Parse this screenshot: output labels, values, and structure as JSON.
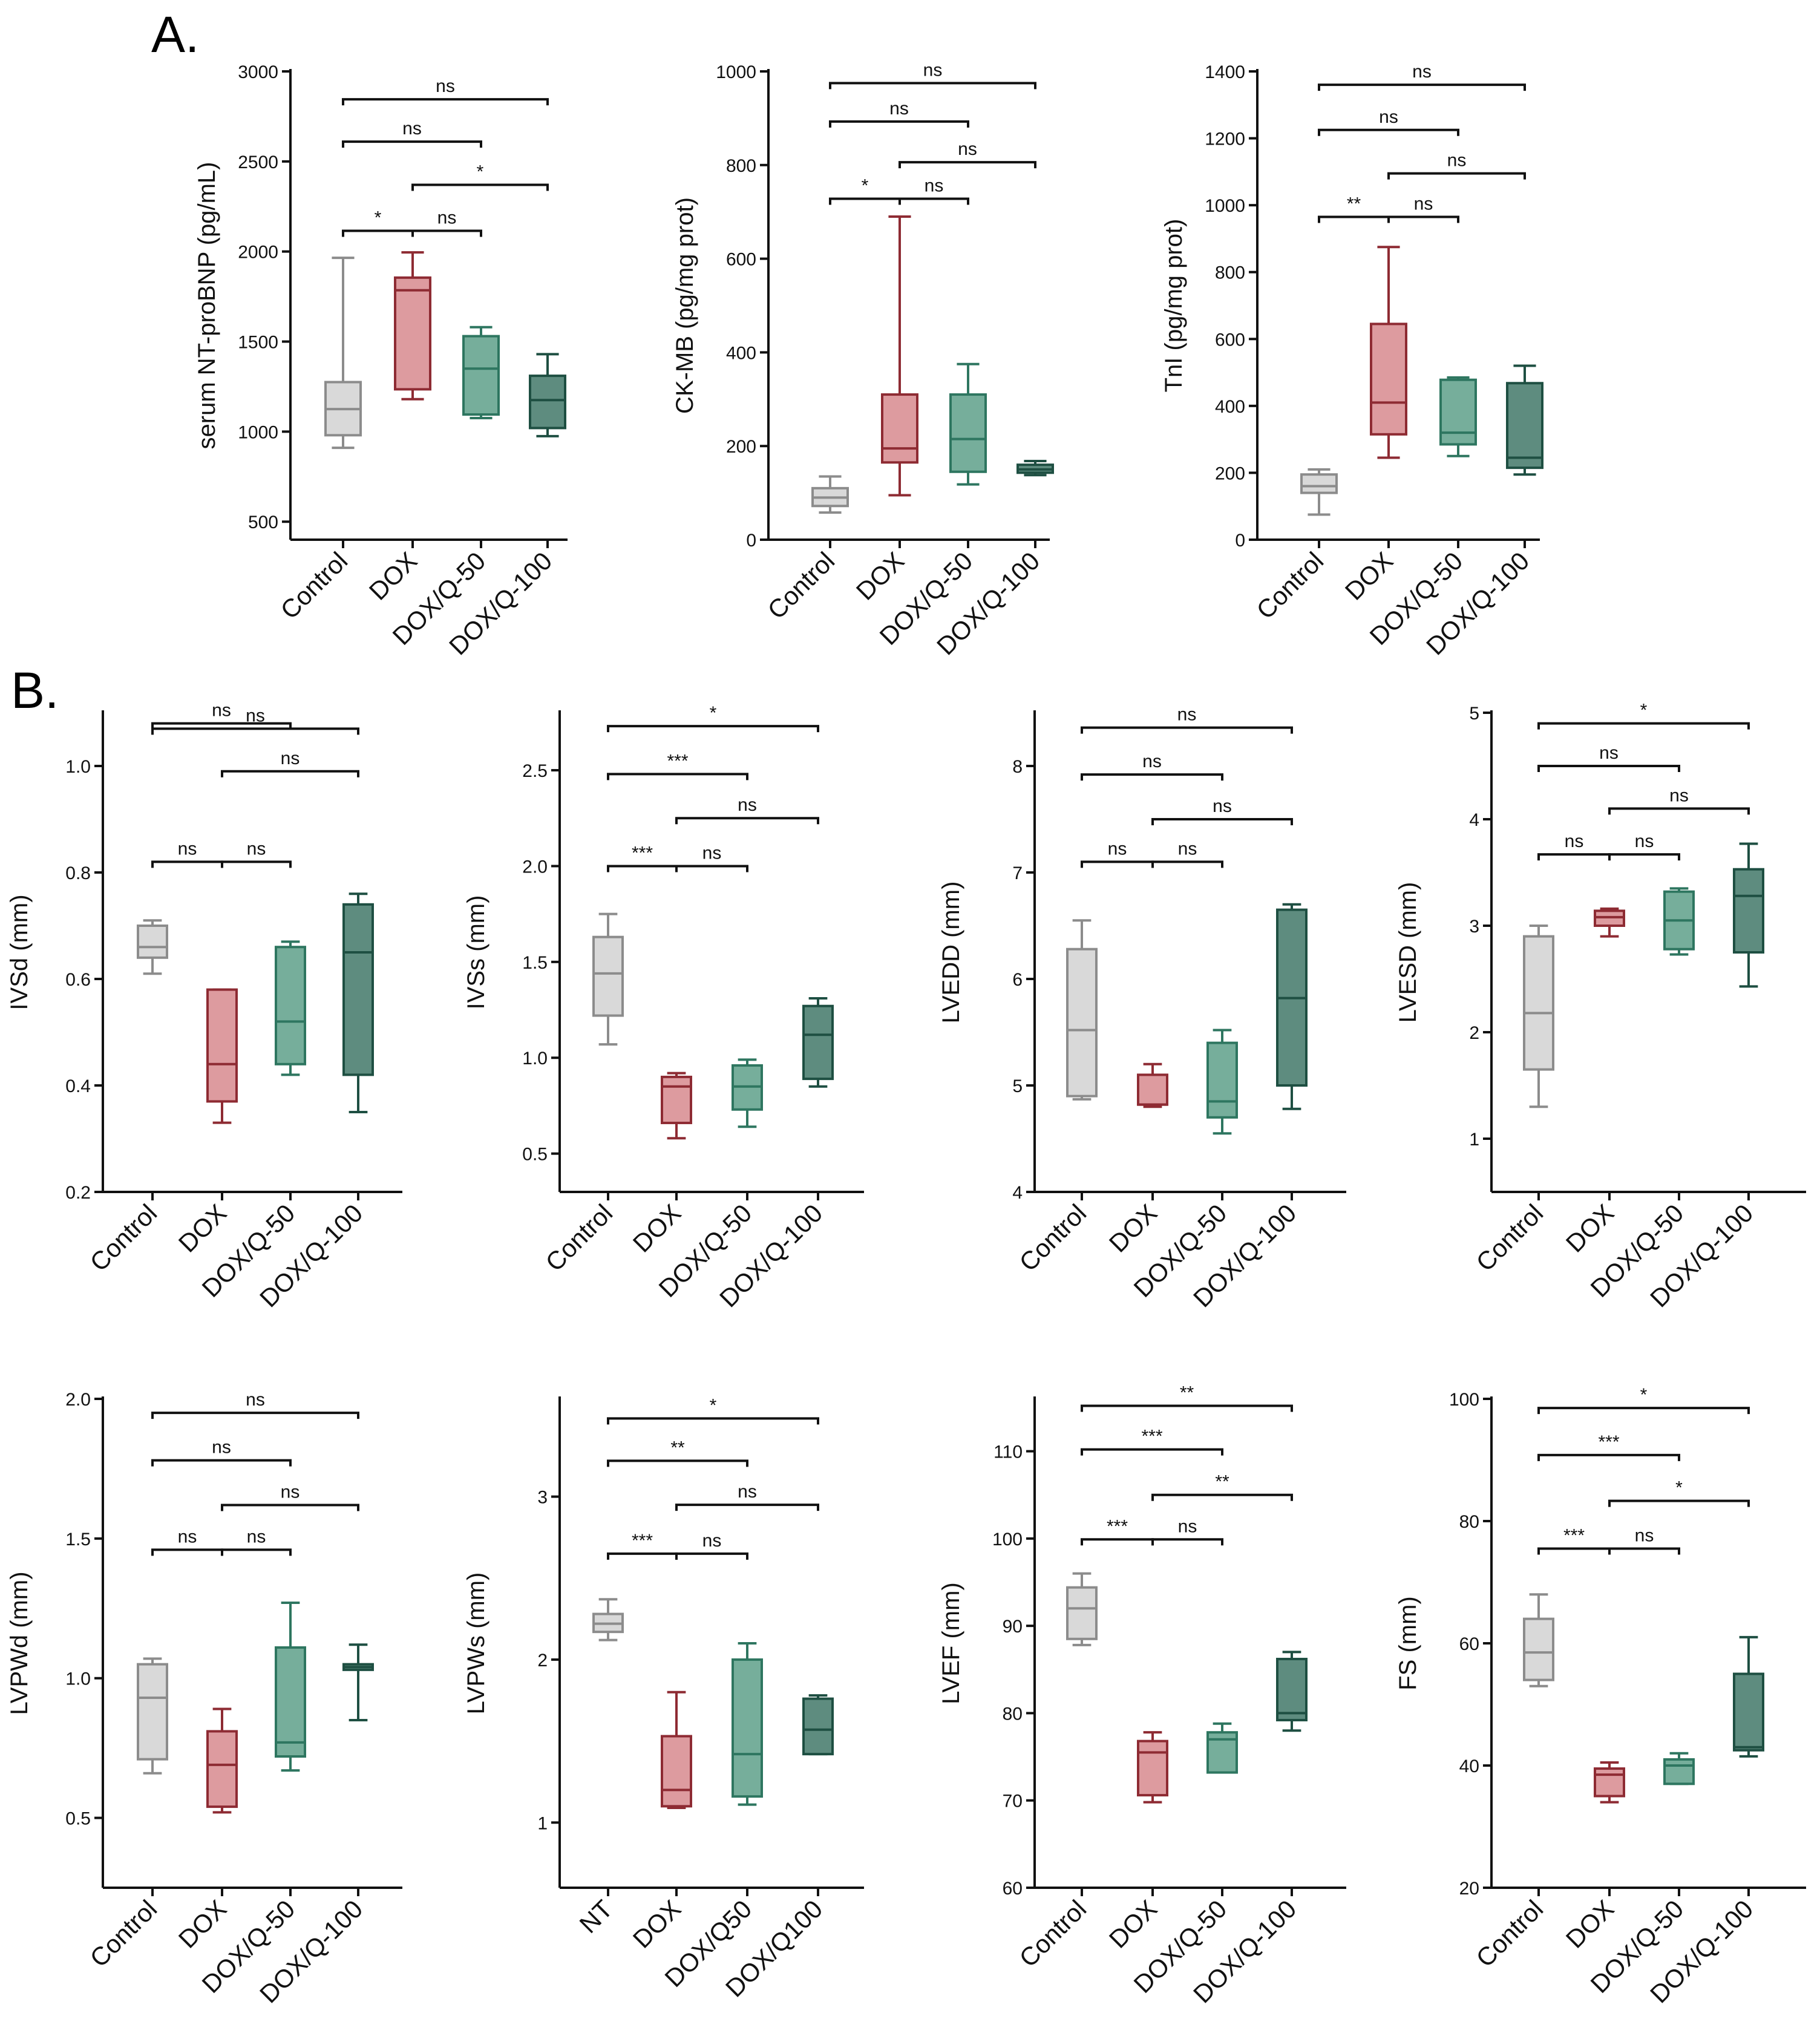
{
  "panel_labels": [
    "A.",
    "B."
  ],
  "group_colors": {
    "Control": {
      "fill": "#d9d9d9",
      "stroke": "#8c8c8c"
    },
    "DOX": {
      "fill": "#dd9b9f",
      "stroke": "#8e2b33"
    },
    "DOX/Q-50": {
      "fill": "#76ae9b",
      "stroke": "#2e7660"
    },
    "DOX/Q-100": {
      "fill": "#5e8c7f",
      "stroke": "#1e4f42"
    }
  },
  "color_keys": [
    "Control",
    "DOX",
    "DOX/Q-50",
    "DOX/Q-100"
  ],
  "chart_data": [
    {
      "type": "box",
      "ylabel": "serum NT-proBNP (pg/mL)",
      "categories": [
        "Control",
        "DOX",
        "DOX/Q-50",
        "DOX/Q-100"
      ],
      "ylim": [
        400,
        3000
      ],
      "ticks": [
        500,
        1000,
        1500,
        2000,
        2500,
        3000
      ],
      "boxes": [
        {
          "min": 910,
          "q1": 980,
          "median": 1125,
          "q3": 1275,
          "max": 1965
        },
        {
          "min": 1180,
          "q1": 1235,
          "median": 1785,
          "q3": 1855,
          "max": 1995
        },
        {
          "min": 1075,
          "q1": 1095,
          "median": 1350,
          "q3": 1530,
          "max": 1580
        },
        {
          "min": 975,
          "q1": 1020,
          "median": 1175,
          "q3": 1310,
          "max": 1430
        }
      ],
      "comparisons": [
        {
          "from": 0,
          "to": 1,
          "label": "*",
          "y": 2115
        },
        {
          "from": 1,
          "to": 2,
          "label": "ns",
          "y": 2115
        },
        {
          "from": 1,
          "to": 3,
          "label": "*",
          "y": 2370
        },
        {
          "from": 0,
          "to": 2,
          "label": "ns",
          "y": 2610
        },
        {
          "from": 0,
          "to": 3,
          "label": "ns",
          "y": 2845
        }
      ]
    },
    {
      "type": "box",
      "ylabel": "CK-MB (pg/mg prot)",
      "categories": [
        "Control",
        "DOX",
        "DOX/Q-50",
        "DOX/Q-100"
      ],
      "ylim": [
        0,
        1000
      ],
      "ticks": [
        0,
        200,
        400,
        600,
        800,
        1000
      ],
      "boxes": [
        {
          "min": 58,
          "q1": 72,
          "median": 90,
          "q3": 110,
          "max": 135
        },
        {
          "min": 95,
          "q1": 165,
          "median": 195,
          "q3": 310,
          "max": 690
        },
        {
          "min": 118,
          "q1": 145,
          "median": 215,
          "q3": 310,
          "max": 375
        },
        {
          "min": 138,
          "q1": 143,
          "median": 150,
          "q3": 160,
          "max": 168
        }
      ],
      "comparisons": [
        {
          "from": 0,
          "to": 1,
          "label": "*",
          "y": 728
        },
        {
          "from": 1,
          "to": 2,
          "label": "ns",
          "y": 728
        },
        {
          "from": 1,
          "to": 3,
          "label": "ns",
          "y": 806
        },
        {
          "from": 0,
          "to": 2,
          "label": "ns",
          "y": 893
        },
        {
          "from": 0,
          "to": 3,
          "label": "ns",
          "y": 975
        }
      ]
    },
    {
      "type": "box",
      "ylabel": "TnI (pg/mg prot)",
      "categories": [
        "Control",
        "DOX",
        "DOX/Q-50",
        "DOX/Q-100"
      ],
      "ylim": [
        0,
        1400
      ],
      "ticks": [
        0,
        200,
        400,
        600,
        800,
        1000,
        1200,
        1400
      ],
      "boxes": [
        {
          "min": 75,
          "q1": 140,
          "median": 160,
          "q3": 195,
          "max": 210
        },
        {
          "min": 245,
          "q1": 315,
          "median": 410,
          "q3": 645,
          "max": 875
        },
        {
          "min": 250,
          "q1": 285,
          "median": 320,
          "q3": 478,
          "max": 485
        },
        {
          "min": 195,
          "q1": 215,
          "median": 245,
          "q3": 468,
          "max": 520
        }
      ],
      "comparisons": [
        {
          "from": 0,
          "to": 1,
          "label": "**",
          "y": 965
        },
        {
          "from": 1,
          "to": 2,
          "label": "ns",
          "y": 965
        },
        {
          "from": 1,
          "to": 3,
          "label": "ns",
          "y": 1095
        },
        {
          "from": 0,
          "to": 2,
          "label": "ns",
          "y": 1225
        },
        {
          "from": 0,
          "to": 3,
          "label": "ns",
          "y": 1360
        }
      ]
    },
    {
      "type": "box",
      "ylabel": "IVSd (mm)",
      "categories": [
        "Control",
        "DOX",
        "DOX/Q-50",
        "DOX/Q-100"
      ],
      "ylim": [
        0.2,
        1.1
      ],
      "ticks": [
        0.2,
        0.4,
        0.6,
        0.8,
        1.0
      ],
      "boxes": [
        {
          "min": 0.61,
          "q1": 0.64,
          "median": 0.66,
          "q3": 0.7,
          "max": 0.71
        },
        {
          "min": 0.33,
          "q1": 0.37,
          "median": 0.44,
          "q3": 0.58,
          "max": 0.58
        },
        {
          "min": 0.42,
          "q1": 0.44,
          "median": 0.52,
          "q3": 0.66,
          "max": 0.67
        },
        {
          "min": 0.35,
          "q1": 0.42,
          "median": 0.65,
          "q3": 0.74,
          "max": 0.76
        }
      ],
      "comparisons": [
        {
          "from": 0,
          "to": 1,
          "label": "ns",
          "y": 0.82
        },
        {
          "from": 1,
          "to": 2,
          "label": "ns",
          "y": 0.82
        },
        {
          "from": 1,
          "to": 3,
          "label": "ns",
          "y": 0.99
        },
        {
          "from": 0,
          "to": 2,
          "label": "ns",
          "y": 1.08
        },
        {
          "from": 0,
          "to": 3,
          "label": "ns",
          "y": 1.07
        }
      ]
    },
    {
      "type": "box",
      "ylabel": "IVSs (mm)",
      "categories": [
        "Control",
        "DOX",
        "DOX/Q-50",
        "DOX/Q-100"
      ],
      "ylim": [
        0.3,
        2.8
      ],
      "ticks": [
        0.5,
        1.0,
        1.5,
        2.0,
        2.5
      ],
      "boxes": [
        {
          "min": 1.07,
          "q1": 1.22,
          "median": 1.44,
          "q3": 1.63,
          "max": 1.75
        },
        {
          "min": 0.58,
          "q1": 0.66,
          "median": 0.85,
          "q3": 0.9,
          "max": 0.92
        },
        {
          "min": 0.64,
          "q1": 0.73,
          "median": 0.85,
          "q3": 0.96,
          "max": 0.99
        },
        {
          "min": 0.85,
          "q1": 0.89,
          "median": 1.12,
          "q3": 1.27,
          "max": 1.31
        }
      ],
      "comparisons": [
        {
          "from": 0,
          "to": 1,
          "label": "***",
          "y": 2.0
        },
        {
          "from": 1,
          "to": 2,
          "label": "ns",
          "y": 2.0
        },
        {
          "from": 1,
          "to": 3,
          "label": "ns",
          "y": 2.25
        },
        {
          "from": 0,
          "to": 2,
          "label": "***",
          "y": 2.48
        },
        {
          "from": 0,
          "to": 3,
          "label": "*",
          "y": 2.73
        }
      ]
    },
    {
      "type": "box",
      "ylabel": "LVEDD (mm)",
      "categories": [
        "Control",
        "DOX",
        "DOX/Q-50",
        "DOX/Q-100"
      ],
      "ylim": [
        4,
        8.5
      ],
      "ticks": [
        4,
        5,
        6,
        7,
        8
      ],
      "boxes": [
        {
          "min": 4.87,
          "q1": 4.9,
          "median": 5.52,
          "q3": 6.28,
          "max": 6.55
        },
        {
          "min": 4.8,
          "q1": 4.82,
          "median": 4.82,
          "q3": 5.1,
          "max": 5.2
        },
        {
          "min": 4.55,
          "q1": 4.7,
          "median": 4.85,
          "q3": 5.4,
          "max": 5.52
        },
        {
          "min": 4.78,
          "q1": 5.0,
          "median": 5.82,
          "q3": 6.65,
          "max": 6.7
        }
      ],
      "comparisons": [
        {
          "from": 0,
          "to": 1,
          "label": "ns",
          "y": 7.1
        },
        {
          "from": 1,
          "to": 2,
          "label": "ns",
          "y": 7.1
        },
        {
          "from": 1,
          "to": 3,
          "label": "ns",
          "y": 7.5
        },
        {
          "from": 0,
          "to": 2,
          "label": "ns",
          "y": 7.92
        },
        {
          "from": 0,
          "to": 3,
          "label": "ns",
          "y": 8.36
        }
      ]
    },
    {
      "type": "box",
      "ylabel": "LVESD (mm)",
      "categories": [
        "Control",
        "DOX",
        "DOX/Q-50",
        "DOX/Q-100"
      ],
      "ylim": [
        0.5,
        5
      ],
      "ticks": [
        1,
        2,
        3,
        4,
        5
      ],
      "boxes": [
        {
          "min": 1.3,
          "q1": 1.65,
          "median": 2.18,
          "q3": 2.9,
          "max": 3.0
        },
        {
          "min": 2.9,
          "q1": 3.0,
          "median": 3.08,
          "q3": 3.14,
          "max": 3.16
        },
        {
          "min": 2.73,
          "q1": 2.78,
          "median": 3.05,
          "q3": 3.32,
          "max": 3.35
        },
        {
          "min": 2.43,
          "q1": 2.75,
          "median": 3.28,
          "q3": 3.53,
          "max": 3.77
        }
      ],
      "comparisons": [
        {
          "from": 0,
          "to": 1,
          "label": "ns",
          "y": 3.67
        },
        {
          "from": 1,
          "to": 2,
          "label": "ns",
          "y": 3.67
        },
        {
          "from": 1,
          "to": 3,
          "label": "ns",
          "y": 4.1
        },
        {
          "from": 0,
          "to": 2,
          "label": "ns",
          "y": 4.5
        },
        {
          "from": 0,
          "to": 3,
          "label": "*",
          "y": 4.9
        }
      ]
    },
    {
      "type": "box",
      "ylabel": "LVPWd (mm)",
      "categories": [
        "Control",
        "DOX",
        "DOX/Q-50",
        "DOX/Q-100"
      ],
      "ylim": [
        0.25,
        2.0
      ],
      "ticks": [
        0.5,
        1.0,
        1.5,
        2.0
      ],
      "boxes": [
        {
          "min": 0.66,
          "q1": 0.71,
          "median": 0.93,
          "q3": 1.05,
          "max": 1.07
        },
        {
          "min": 0.52,
          "q1": 0.54,
          "median": 0.69,
          "q3": 0.81,
          "max": 0.89
        },
        {
          "min": 0.67,
          "q1": 0.72,
          "median": 0.77,
          "q3": 1.11,
          "max": 1.27
        },
        {
          "min": 0.85,
          "q1": 1.03,
          "median": 1.04,
          "q3": 1.05,
          "max": 1.12
        }
      ],
      "comparisons": [
        {
          "from": 0,
          "to": 1,
          "label": "ns",
          "y": 1.46
        },
        {
          "from": 1,
          "to": 2,
          "label": "ns",
          "y": 1.46
        },
        {
          "from": 1,
          "to": 3,
          "label": "ns",
          "y": 1.62
        },
        {
          "from": 0,
          "to": 2,
          "label": "ns",
          "y": 1.78
        },
        {
          "from": 0,
          "to": 3,
          "label": "ns",
          "y": 1.95
        }
      ]
    },
    {
      "type": "box",
      "ylabel": "LVPWs (mm)",
      "categories": [
        "NT",
        "DOX",
        "DOX/Q50",
        "DOX/Q100"
      ],
      "ylim": [
        0.6,
        3.6
      ],
      "ticks": [
        1,
        2,
        3
      ],
      "boxes": [
        {
          "min": 2.12,
          "q1": 2.17,
          "median": 2.22,
          "q3": 2.28,
          "max": 2.37
        },
        {
          "min": 1.09,
          "q1": 1.1,
          "median": 1.2,
          "q3": 1.53,
          "max": 1.8
        },
        {
          "min": 1.11,
          "q1": 1.16,
          "median": 1.42,
          "q3": 2.0,
          "max": 2.1
        },
        {
          "min": 1.42,
          "q1": 1.42,
          "median": 1.57,
          "q3": 1.76,
          "max": 1.78
        }
      ],
      "comparisons": [
        {
          "from": 0,
          "to": 1,
          "label": "***",
          "y": 2.65
        },
        {
          "from": 1,
          "to": 2,
          "label": "ns",
          "y": 2.65
        },
        {
          "from": 1,
          "to": 3,
          "label": "ns",
          "y": 2.95
        },
        {
          "from": 0,
          "to": 2,
          "label": "**",
          "y": 3.22
        },
        {
          "from": 0,
          "to": 3,
          "label": "*",
          "y": 3.48
        }
      ]
    },
    {
      "type": "box",
      "ylabel": "LVEF (mm)",
      "categories": [
        "Control",
        "DOX",
        "DOX/Q-50",
        "DOX/Q-100"
      ],
      "ylim": [
        60,
        116
      ],
      "ticks": [
        60,
        70,
        80,
        90,
        100,
        110
      ],
      "boxes": [
        {
          "min": 87.8,
          "q1": 88.5,
          "median": 92.0,
          "q3": 94.4,
          "max": 96.0
        },
        {
          "min": 69.8,
          "q1": 70.6,
          "median": 75.5,
          "q3": 76.8,
          "max": 77.8
        },
        {
          "min": 73.2,
          "q1": 73.2,
          "median": 77.0,
          "q3": 77.8,
          "max": 78.8
        },
        {
          "min": 78.0,
          "q1": 79.2,
          "median": 80.0,
          "q3": 86.2,
          "max": 87.0
        }
      ],
      "comparisons": [
        {
          "from": 0,
          "to": 1,
          "label": "***",
          "y": 99.9
        },
        {
          "from": 1,
          "to": 2,
          "label": "ns",
          "y": 99.9
        },
        {
          "from": 1,
          "to": 3,
          "label": "**",
          "y": 105.0
        },
        {
          "from": 0,
          "to": 2,
          "label": "***",
          "y": 110.2
        },
        {
          "from": 0,
          "to": 3,
          "label": "**",
          "y": 115.2
        }
      ]
    },
    {
      "type": "box",
      "ylabel": "FS (mm)",
      "categories": [
        "Control",
        "DOX",
        "DOX/Q-50",
        "DOX/Q-100"
      ],
      "ylim": [
        20,
        100
      ],
      "ticks": [
        20,
        40,
        60,
        80,
        100
      ],
      "boxes": [
        {
          "min": 53.0,
          "q1": 54.0,
          "median": 58.5,
          "q3": 64.0,
          "max": 68.0
        },
        {
          "min": 34.0,
          "q1": 35.0,
          "median": 38.5,
          "q3": 39.5,
          "max": 40.5
        },
        {
          "min": 37.0,
          "q1": 37.0,
          "median": 40.0,
          "q3": 41.0,
          "max": 42.0
        },
        {
          "min": 41.5,
          "q1": 42.5,
          "median": 43.0,
          "q3": 55.0,
          "max": 61.0
        }
      ],
      "comparisons": [
        {
          "from": 0,
          "to": 1,
          "label": "***",
          "y": 75.5
        },
        {
          "from": 1,
          "to": 2,
          "label": "ns",
          "y": 75.5
        },
        {
          "from": 1,
          "to": 3,
          "label": "*",
          "y": 83.3
        },
        {
          "from": 0,
          "to": 2,
          "label": "***",
          "y": 90.8
        },
        {
          "from": 0,
          "to": 3,
          "label": "*",
          "y": 98.5
        }
      ]
    }
  ]
}
